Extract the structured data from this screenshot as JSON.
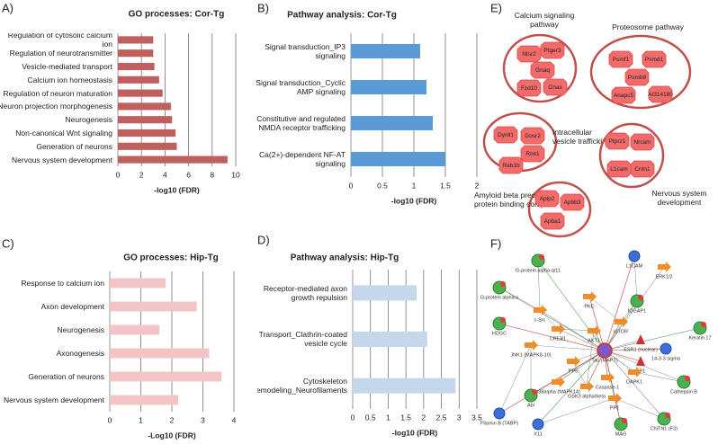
{
  "chart_data": [
    {
      "type": "bar",
      "panel_label": "A)",
      "title": "GO processes: Cor-Tg",
      "categories": [
        "Regulation of cytosolic calcium ion",
        "Regulation of neurotransmitter",
        "Vesicle-mediated transport",
        "Calcium ion homeostasis",
        "Regulation of neuron maturation",
        "Neuron projection morphogenesis",
        "Neurogenesis",
        "Non-canonical Wnt signaling",
        "Generation of neurons",
        "Nervous system development"
      ],
      "values": [
        3.0,
        3.0,
        3.1,
        3.5,
        3.8,
        4.5,
        4.6,
        4.9,
        5.0,
        9.3
      ],
      "color": "#c0605e",
      "xlabel": "-log10 (FDR)",
      "xlim": [
        0,
        10
      ],
      "xticks": [
        0,
        2,
        4,
        6,
        8,
        10
      ],
      "grid": true
    },
    {
      "type": "bar",
      "panel_label": "B)",
      "title": "Pathway analysis: Cor-Tg",
      "categories": [
        "Signal transduction_IP3 signaling",
        "Signal transduction_Cyclic AMP signaling",
        "Constitutive and regulated NMDA receptor trafficking",
        "Ca(2+)-dependent NF-AT signaling"
      ],
      "values": [
        1.1,
        1.2,
        1.3,
        1.5
      ],
      "color": "#5b9bd5",
      "xlabel": "-log10 (FDR)",
      "xlim": [
        0,
        2
      ],
      "xticks": [
        0,
        0.5,
        1,
        1.5,
        2
      ],
      "grid": true
    },
    {
      "type": "bar",
      "panel_label": "C)",
      "title": "GO processes: Hip-Tg",
      "categories": [
        "Response to calcium ion",
        "Axon development",
        "Neurogenesis",
        "Axonogenesis",
        "Generation of neurons",
        "Nervous system development"
      ],
      "values": [
        1.8,
        2.8,
        1.6,
        3.2,
        3.6,
        2.2
      ],
      "color": "#f2c4c6",
      "xlabel": "-Log10 (FDR)",
      "xlim": [
        0,
        4
      ],
      "xticks": [
        0,
        1,
        2,
        3,
        4
      ],
      "grid": true
    },
    {
      "type": "bar",
      "panel_label": "D)",
      "title": "Pathway analysis: Hip-Tg",
      "categories": [
        "Receptor-mediated axon growth repulsion",
        "Transport_Clathrin-coated vesicle cycle",
        "Cytoskeleton remodeling_Neurofilaments"
      ],
      "values": [
        1.8,
        2.1,
        2.9
      ],
      "color": "#c5d7ea",
      "xlabel": "-log10 (FDR)",
      "xlim": [
        0,
        3.5
      ],
      "xticks": [
        0,
        0.5,
        1,
        1.5,
        2,
        2.5,
        3,
        3.5
      ],
      "grid": true
    }
  ],
  "network_e": {
    "panel_label": "E)",
    "clusters": [
      {
        "label": "Calcium signaling pathway",
        "nodes": [
          "Ntsr2",
          "Ptger3",
          "Gnaq",
          "Fzd10",
          "Gnas"
        ]
      },
      {
        "label": "Proteosome pathway",
        "nodes": [
          "Psmf1",
          "Psmd1",
          "Psmb8",
          "Anapc5",
          "AI314180"
        ]
      },
      {
        "label": "Intracellular vesicle trafficking",
        "nodes": [
          "Dynll1",
          "Gosr2",
          "Rint1",
          "Rab1b"
        ]
      },
      {
        "label": "Nervous system development",
        "nodes": [
          "Ptprz1",
          "Nrcam",
          "L1cam",
          "Cntn1"
        ]
      },
      {
        "label": "Amyloid beta precursor protein binding complex",
        "nodes": [
          "Aplp2",
          "Apbb3",
          "Apba1"
        ]
      }
    ]
  },
  "network_f": {
    "panel_label": "F)",
    "nodes": [
      "G-protein alpha-q/11",
      "L1CAM",
      "ERK1/2",
      "G-protein alpha-s",
      "PKC",
      "c-Src",
      "IQGAP1",
      "HDGC",
      "CREB1",
      "AKT1",
      "mTOR",
      "ESR1 (nuclear)",
      "Keratin 17",
      "14-3-3 sigma",
      "JNK1 (MAPK8-10)",
      "Tau (MAPT)",
      "SP1",
      "PP5",
      "DAPK1",
      "Caspase-1",
      "Cathepsin B",
      "p38alpha (MAPK14)",
      "GSK3 alpha/beta",
      "Abl",
      "PP1",
      "Filamin B (TABP)",
      "CNTN1 (F3)",
      "X11",
      "MAG"
    ]
  }
}
